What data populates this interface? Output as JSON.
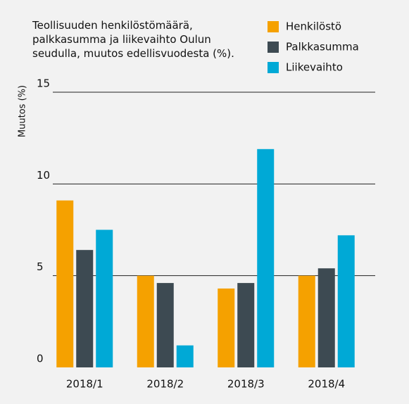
{
  "chart_data": {
    "type": "bar",
    "title": "Teollisuuden henkilöstömäärä, palkkasumma ja liikevaihto Oulun seudulla, muutos edellisvuodesta (%).",
    "y_label": "Muutos (%)",
    "categories": [
      "2018/1",
      "2018/2",
      "2018/3",
      "2018/4"
    ],
    "series": [
      {
        "name": "Henkilöstö",
        "color": "#f5a100",
        "values": [
          9.1,
          5.0,
          4.3,
          5.0
        ]
      },
      {
        "name": "Palkkasumma",
        "color": "#3d4a52",
        "values": [
          6.4,
          4.6,
          4.6,
          5.4
        ]
      },
      {
        "name": "Liikevaihto",
        "color": "#00a9d6",
        "values": [
          7.5,
          1.2,
          11.9,
          7.2
        ]
      }
    ],
    "ylim": [
      0,
      15
    ],
    "yticks": [
      0,
      5,
      10,
      15
    ],
    "grid": true
  }
}
